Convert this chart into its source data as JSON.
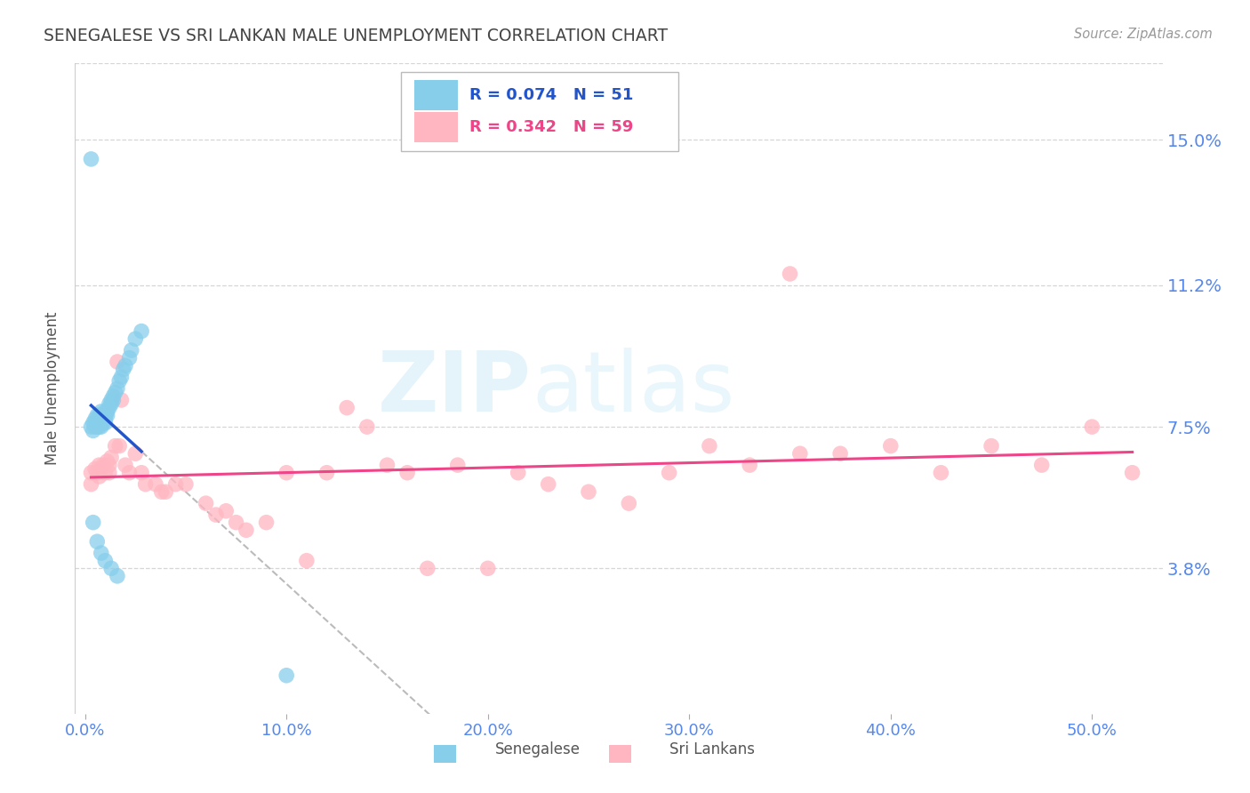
{
  "title": "SENEGALESE VS SRI LANKAN MALE UNEMPLOYMENT CORRELATION CHART",
  "source": "Source: ZipAtlas.com",
  "ylabel": "Male Unemployment",
  "xlabel_ticks": [
    "0.0%",
    "10.0%",
    "20.0%",
    "30.0%",
    "40.0%",
    "50.0%"
  ],
  "xlabel_vals": [
    0.0,
    0.1,
    0.2,
    0.3,
    0.4,
    0.5
  ],
  "ytick_labels": [
    "3.8%",
    "7.5%",
    "11.2%",
    "15.0%"
  ],
  "ytick_vals": [
    0.038,
    0.075,
    0.112,
    0.15
  ],
  "ylim": [
    0.0,
    0.17
  ],
  "xlim": [
    -0.005,
    0.535
  ],
  "watermark_zip": "ZIP",
  "watermark_atlas": "atlas",
  "senegalese_color": "#87CEEB",
  "srilankans_color": "#FFB6C1",
  "senegalese_line_color": "#2255CC",
  "srilankans_line_color": "#EE4488",
  "background_color": "#ffffff",
  "grid_color": "#cccccc",
  "tick_label_color": "#5588EE",
  "title_color": "#444444",
  "senegalese_x": [
    0.003,
    0.004,
    0.004,
    0.005,
    0.005,
    0.005,
    0.006,
    0.006,
    0.006,
    0.007,
    0.007,
    0.007,
    0.007,
    0.008,
    0.008,
    0.008,
    0.008,
    0.008,
    0.009,
    0.009,
    0.009,
    0.01,
    0.01,
    0.01,
    0.01,
    0.011,
    0.011,
    0.012,
    0.012,
    0.013,
    0.013,
    0.014,
    0.014,
    0.015,
    0.016,
    0.017,
    0.018,
    0.019,
    0.02,
    0.022,
    0.023,
    0.025,
    0.028,
    0.004,
    0.006,
    0.008,
    0.01,
    0.013,
    0.016,
    0.1,
    0.003
  ],
  "senegalese_y": [
    0.075,
    0.076,
    0.074,
    0.076,
    0.075,
    0.077,
    0.076,
    0.075,
    0.078,
    0.077,
    0.076,
    0.075,
    0.078,
    0.076,
    0.077,
    0.075,
    0.076,
    0.079,
    0.077,
    0.078,
    0.076,
    0.077,
    0.076,
    0.078,
    0.079,
    0.079,
    0.078,
    0.08,
    0.081,
    0.081,
    0.082,
    0.082,
    0.083,
    0.084,
    0.085,
    0.087,
    0.088,
    0.09,
    0.091,
    0.093,
    0.095,
    0.098,
    0.1,
    0.05,
    0.045,
    0.042,
    0.04,
    0.038,
    0.036,
    0.01,
    0.145
  ],
  "srilankans_x": [
    0.003,
    0.005,
    0.006,
    0.007,
    0.008,
    0.009,
    0.01,
    0.011,
    0.012,
    0.013,
    0.015,
    0.016,
    0.017,
    0.018,
    0.02,
    0.022,
    0.025,
    0.028,
    0.03,
    0.035,
    0.038,
    0.04,
    0.045,
    0.05,
    0.06,
    0.065,
    0.07,
    0.075,
    0.08,
    0.09,
    0.1,
    0.11,
    0.12,
    0.13,
    0.14,
    0.15,
    0.16,
    0.17,
    0.185,
    0.2,
    0.215,
    0.23,
    0.25,
    0.27,
    0.29,
    0.31,
    0.33,
    0.355,
    0.375,
    0.4,
    0.425,
    0.45,
    0.475,
    0.5,
    0.52,
    0.003,
    0.007,
    0.012,
    0.35
  ],
  "srilankans_y": [
    0.063,
    0.064,
    0.063,
    0.065,
    0.064,
    0.065,
    0.063,
    0.066,
    0.065,
    0.067,
    0.07,
    0.092,
    0.07,
    0.082,
    0.065,
    0.063,
    0.068,
    0.063,
    0.06,
    0.06,
    0.058,
    0.058,
    0.06,
    0.06,
    0.055,
    0.052,
    0.053,
    0.05,
    0.048,
    0.05,
    0.063,
    0.04,
    0.063,
    0.08,
    0.075,
    0.065,
    0.063,
    0.038,
    0.065,
    0.038,
    0.063,
    0.06,
    0.058,
    0.055,
    0.063,
    0.07,
    0.065,
    0.068,
    0.068,
    0.07,
    0.063,
    0.07,
    0.065,
    0.075,
    0.063,
    0.06,
    0.062,
    0.063,
    0.115
  ]
}
